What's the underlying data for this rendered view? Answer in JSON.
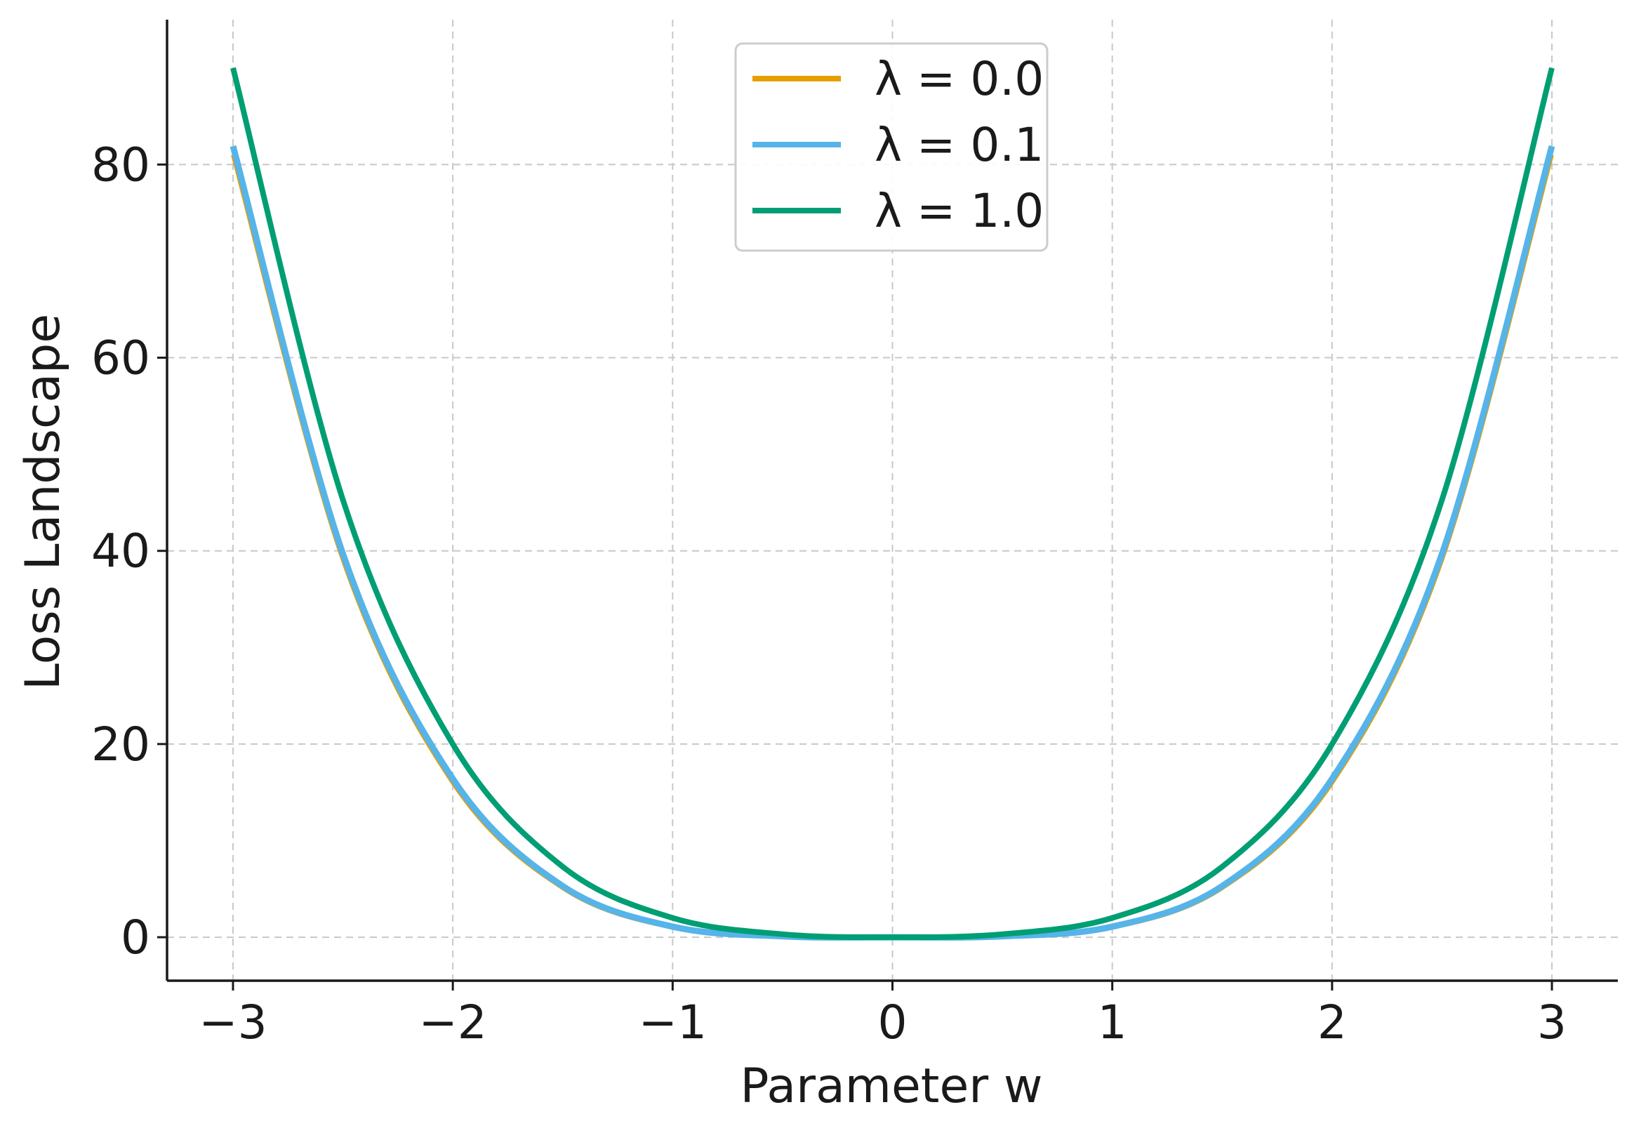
{
  "chart_data": {
    "type": "line",
    "title": "",
    "xlabel": "Parameter w",
    "ylabel": "Loss Landscape",
    "xlim": [
      -3.3,
      3.3
    ],
    "ylim": [
      -4.5,
      95
    ],
    "x_ticks": [
      -3,
      -2,
      -1,
      0,
      1,
      2,
      3
    ],
    "x_tick_labels": [
      "−3",
      "−2",
      "−1",
      "0",
      "1",
      "2",
      "3"
    ],
    "y_ticks": [
      0,
      20,
      40,
      60,
      80
    ],
    "y_tick_labels": [
      "0",
      "20",
      "40",
      "60",
      "80"
    ],
    "grid": true,
    "legend_position": "top-center",
    "x": [
      -3.0,
      -2.5,
      -2.0,
      -1.5,
      -1.0,
      -0.5,
      0.0,
      0.5,
      1.0,
      1.5,
      2.0,
      2.5,
      3.0
    ],
    "series": [
      {
        "name": "λ = 0.0",
        "color": "#E69F00",
        "values": [
          81.0,
          39.1,
          16.0,
          5.1,
          1.0,
          0.06,
          0.0,
          0.06,
          1.0,
          5.1,
          16.0,
          39.1,
          81.0
        ]
      },
      {
        "name": "λ = 0.1",
        "color": "#56B4E9",
        "values": [
          81.9,
          39.7,
          16.4,
          5.3,
          1.1,
          0.09,
          0.0,
          0.09,
          1.1,
          5.3,
          16.4,
          39.7,
          81.9
        ]
      },
      {
        "name": "λ = 1.0",
        "color": "#009E73",
        "values": [
          90.0,
          45.3,
          20.0,
          7.3,
          2.0,
          0.31,
          0.0,
          0.31,
          2.0,
          7.3,
          20.0,
          45.3,
          90.0
        ]
      }
    ]
  }
}
